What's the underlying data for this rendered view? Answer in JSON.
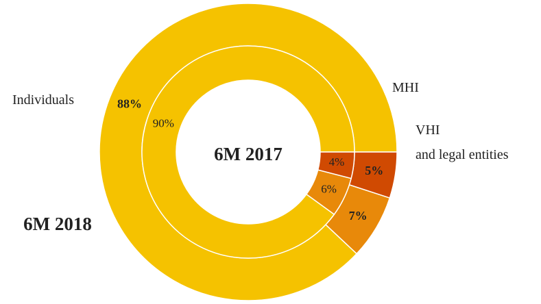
{
  "chart_data": {
    "type": "donut",
    "categories": [
      "Individuals",
      "MHI",
      "VHI\nand legal entities"
    ],
    "colors": [
      "#f5c200",
      "#e8890a",
      "#d04a02"
    ],
    "series": [
      {
        "name": "6M 2018",
        "values": [
          88,
          7,
          5
        ],
        "value_labels": [
          "88%",
          "7%",
          "5%"
        ]
      },
      {
        "name": "6M 2017",
        "values": [
          90,
          6,
          4
        ],
        "value_labels": [
          "90%",
          "6%",
          "4%"
        ]
      }
    ]
  }
}
